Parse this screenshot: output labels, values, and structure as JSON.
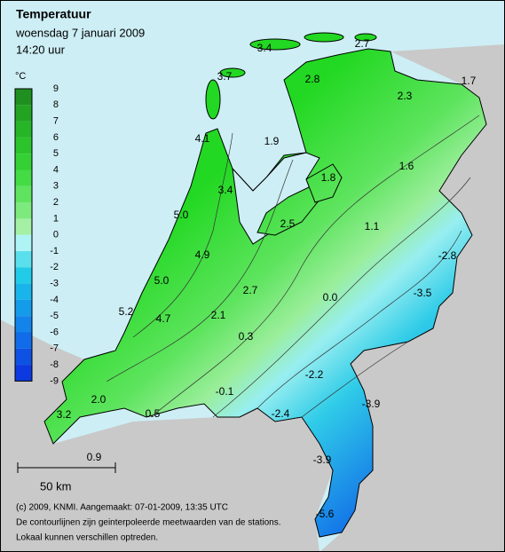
{
  "header": {
    "title": "Temperatuur",
    "date": "woensdag 7 januari 2009",
    "time": "14:20 uur"
  },
  "legend": {
    "unit": "°C",
    "values": [
      9,
      8,
      7,
      6,
      5,
      4,
      3,
      2,
      1,
      0,
      -1,
      -2,
      -3,
      -4,
      -5,
      -6,
      -7,
      -8,
      -9
    ],
    "colors": [
      "#1f8f1f",
      "#22a322",
      "#26b526",
      "#2cc42c",
      "#33d133",
      "#44dc44",
      "#5ee45e",
      "#7cea7c",
      "#a4f0a4",
      "#aef4f4",
      "#5ae0ec",
      "#22cce8",
      "#18b4ea",
      "#149cea",
      "#1284ea",
      "#106ce8",
      "#0e52e4",
      "#0c3ae0"
    ]
  },
  "stations": [
    "3.4",
    "2.7",
    "3.7",
    "2.8",
    "2.3",
    "1.7",
    "4.1",
    "1.9",
    "1.8",
    "1.6",
    "3.4",
    "5.0",
    "2.5",
    "1.1",
    "-2.8",
    "4.9",
    "5.0",
    "2.7",
    "-3.5",
    "0.0",
    "5.2",
    "4.7",
    "2.1",
    "0.3",
    "-2.2",
    "-0.1",
    "2.0",
    "-3.9",
    "0.5",
    "-2.4",
    "3.2",
    "0.9",
    "-3.9",
    "-5.6"
  ],
  "scale": "50 km",
  "footer": [
    "(c) 2009, KNMI. Aangemaakt: 07-01-2009, 13:35 UTC",
    "De contourlijnen zijn geinterpoleerde meetwaarden van de stations.",
    "Lokaal kunnen verschillen optreden."
  ]
}
